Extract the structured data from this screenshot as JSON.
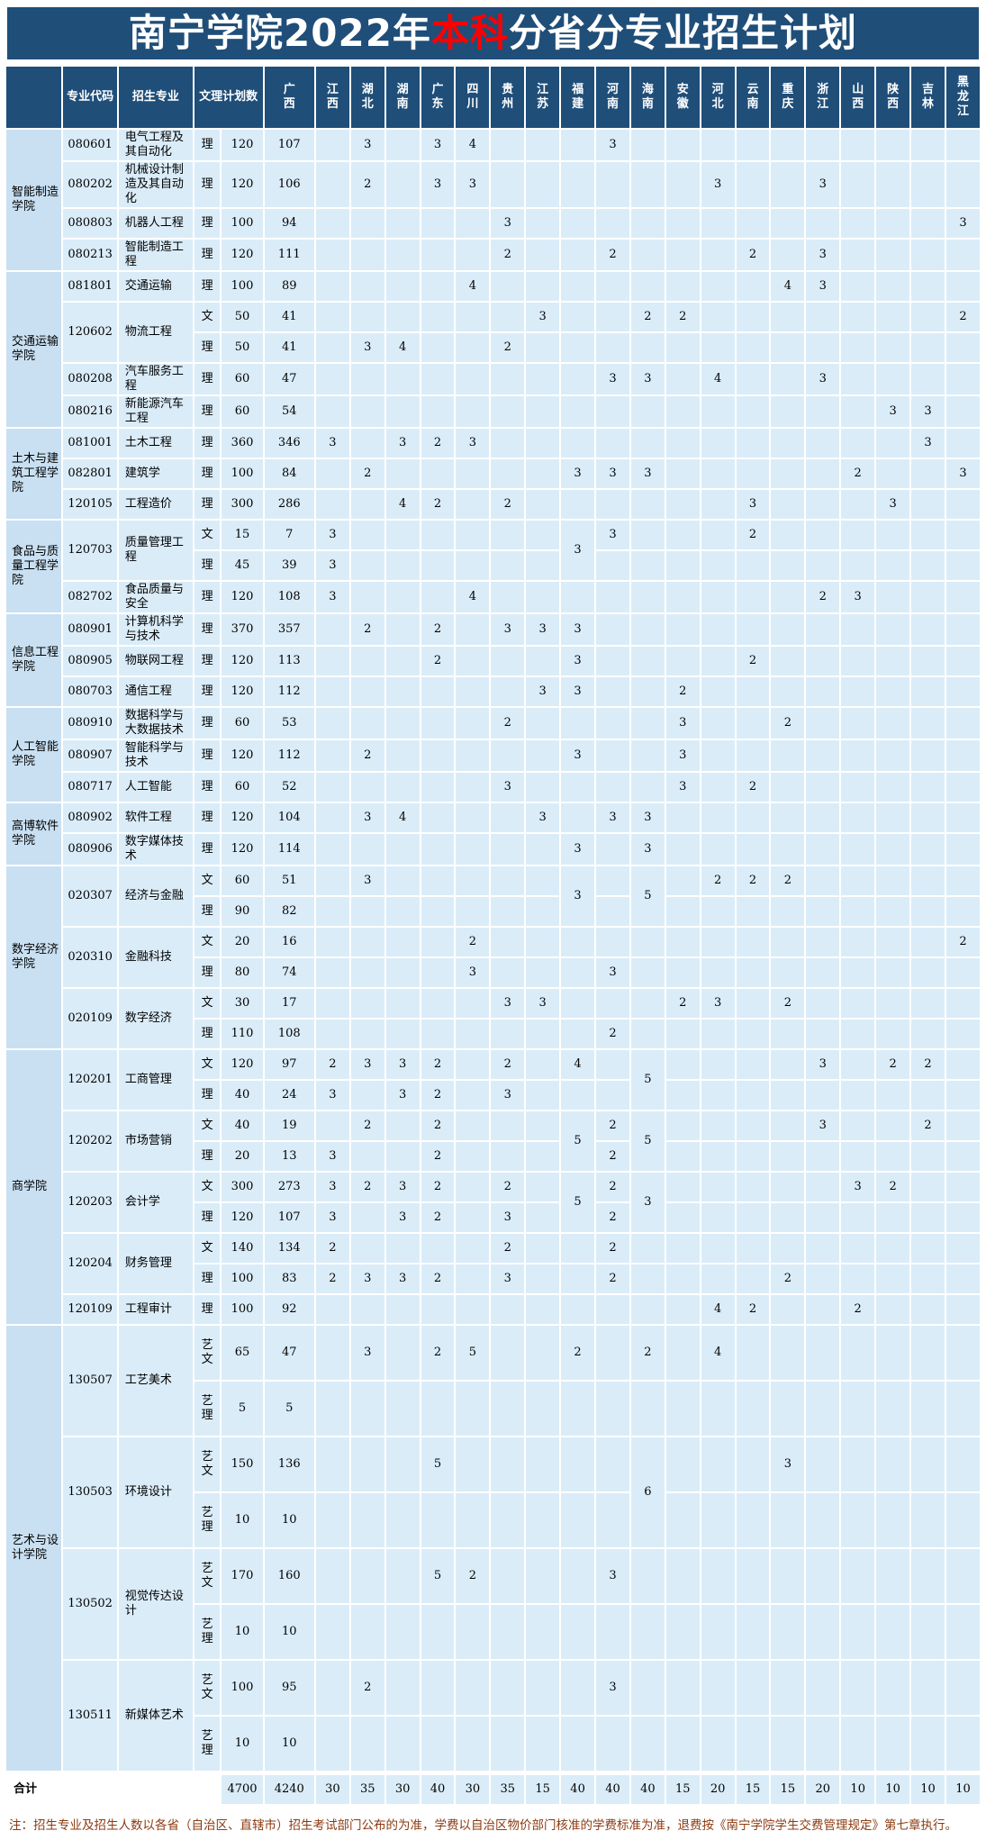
{
  "title": {
    "prefix": "南宁学院2022年",
    "highlight": "本科",
    "suffix": "分省分专业招生计划"
  },
  "colors": {
    "banner_navy": "#1f4e79",
    "highlight_red": "#ff0000",
    "cell_blue": "#daecf8",
    "college_cell_blue": "#c9e0f2",
    "gridline": "#ffffff",
    "note_text": "#8b3a10"
  },
  "table": {
    "corner_label": "",
    "headers": {
      "code": "专业代码",
      "major": "招生专业",
      "track_plan": "文理计划数"
    },
    "provinces": [
      "广西",
      "江西",
      "湖北",
      "湖南",
      "广东",
      "四川",
      "贵州",
      "江苏",
      "福建",
      "河南",
      "海南",
      "安徽",
      "河北",
      "云南",
      "重庆",
      "浙江",
      "山西",
      "陕西",
      "吉林",
      "黑龙江"
    ],
    "colleges": [
      {
        "name": "智能制造学院",
        "majors": [
          {
            "code": "080601",
            "name": "电气工程及其自动化",
            "rows": [
              {
                "track": "理",
                "plan": 120,
                "values": {
                  "广西": 107,
                  "湖北": 3,
                  "广东": 3,
                  "四川": 4,
                  "河南": 3
                }
              }
            ]
          },
          {
            "code": "080202",
            "name": "机械设计制造及其自动化",
            "rows": [
              {
                "track": "理",
                "plan": 120,
                "values": {
                  "广西": 106,
                  "湖北": 2,
                  "广东": 3,
                  "四川": 3,
                  "河北": 3,
                  "浙江": 3
                }
              }
            ]
          },
          {
            "code": "080803",
            "name": "机器人工程",
            "rows": [
              {
                "track": "理",
                "plan": 100,
                "values": {
                  "广西": 94,
                  "贵州": 3,
                  "黑龙江": 3
                }
              }
            ]
          },
          {
            "code": "080213",
            "name": "智能制造工程",
            "rows": [
              {
                "track": "理",
                "plan": 120,
                "values": {
                  "广西": 111,
                  "贵州": 2,
                  "河南": 2,
                  "云南": 2,
                  "浙江": 3
                }
              }
            ]
          }
        ]
      },
      {
        "name": "交通运输学院",
        "majors": [
          {
            "code": "081801",
            "name": "交通运输",
            "rows": [
              {
                "track": "理",
                "plan": 100,
                "values": {
                  "广西": 89,
                  "四川": 4,
                  "重庆": 4,
                  "浙江": 3
                }
              }
            ]
          },
          {
            "code": "120602",
            "name": "物流工程",
            "rows": [
              {
                "track": "文",
                "plan": 50,
                "values": {
                  "广西": 41,
                  "江苏": 3,
                  "海南": 2,
                  "安徽": 2,
                  "黑龙江": 2
                }
              },
              {
                "track": "理",
                "plan": 50,
                "values": {
                  "广西": 41,
                  "湖北": 3,
                  "湖南": 4,
                  "贵州": 2
                }
              }
            ]
          },
          {
            "code": "080208",
            "name": "汽车服务工程",
            "rows": [
              {
                "track": "理",
                "plan": 60,
                "values": {
                  "广西": 47,
                  "河南": 3,
                  "海南": 3,
                  "河北": 4,
                  "浙江": 3
                }
              }
            ]
          },
          {
            "code": "080216",
            "name": "新能源汽车工程",
            "rows": [
              {
                "track": "理",
                "plan": 60,
                "values": {
                  "广西": 54,
                  "陕西": 3,
                  "吉林": 3
                }
              }
            ]
          }
        ]
      },
      {
        "name": "土木与建筑工程学院",
        "majors": [
          {
            "code": "081001",
            "name": "土木工程",
            "rows": [
              {
                "track": "理",
                "plan": 360,
                "values": {
                  "广西": 346,
                  "江西": 3,
                  "湖南": 3,
                  "广东": 2,
                  "四川": 3,
                  "吉林": 3
                }
              }
            ]
          },
          {
            "code": "082801",
            "name": "建筑学",
            "rows": [
              {
                "track": "理",
                "plan": 100,
                "values": {
                  "广西": 84,
                  "湖北": 2,
                  "福建": 3,
                  "河南": 3,
                  "海南": 3,
                  "山西": 2,
                  "黑龙江": 3
                }
              }
            ]
          },
          {
            "code": "120105",
            "name": "工程造价",
            "rows": [
              {
                "track": "理",
                "plan": 300,
                "values": {
                  "广西": 286,
                  "湖南": 4,
                  "广东": 2,
                  "贵州": 2,
                  "云南": 3,
                  "陕西": 3
                }
              }
            ]
          }
        ]
      },
      {
        "name": "食品与质量工程学院",
        "majors": [
          {
            "code": "120703",
            "name": "质量管理工程",
            "merged": {
              "福建": 3
            },
            "rows": [
              {
                "track": "文",
                "plan": 15,
                "values": {
                  "广西": 7,
                  "江西": 3,
                  "河南": 3,
                  "云南": 2
                }
              },
              {
                "track": "理",
                "plan": 45,
                "values": {
                  "广西": 39,
                  "江西": 3
                }
              }
            ]
          },
          {
            "code": "082702",
            "name": "食品质量与安全",
            "rows": [
              {
                "track": "理",
                "plan": 120,
                "values": {
                  "广西": 108,
                  "江西": 3,
                  "四川": 4,
                  "浙江": 2,
                  "山西": 3
                }
              }
            ]
          }
        ]
      },
      {
        "name": "信息工程学院",
        "majors": [
          {
            "code": "080901",
            "name": "计算机科学与技术",
            "rows": [
              {
                "track": "理",
                "plan": 370,
                "values": {
                  "广西": 357,
                  "湖北": 2,
                  "广东": 2,
                  "贵州": 3,
                  "江苏": 3,
                  "福建": 3
                }
              }
            ]
          },
          {
            "code": "080905",
            "name": "物联网工程",
            "rows": [
              {
                "track": "理",
                "plan": 120,
                "values": {
                  "广西": 113,
                  "广东": 2,
                  "福建": 3,
                  "云南": 2
                }
              }
            ]
          },
          {
            "code": "080703",
            "name": "通信工程",
            "rows": [
              {
                "track": "理",
                "plan": 120,
                "values": {
                  "广西": 112,
                  "江苏": 3,
                  "福建": 3,
                  "安徽": 2
                }
              }
            ]
          }
        ]
      },
      {
        "name": "人工智能学院",
        "majors": [
          {
            "code": "080910",
            "name": "数据科学与大数据技术",
            "rows": [
              {
                "track": "理",
                "plan": 60,
                "values": {
                  "广西": 53,
                  "贵州": 2,
                  "安徽": 3,
                  "重庆": 2
                }
              }
            ]
          },
          {
            "code": "080907",
            "name": "智能科学与技术",
            "rows": [
              {
                "track": "理",
                "plan": 120,
                "values": {
                  "广西": 112,
                  "湖北": 2,
                  "福建": 3,
                  "安徽": 3
                }
              }
            ]
          },
          {
            "code": "080717",
            "name": "人工智能",
            "rows": [
              {
                "track": "理",
                "plan": 60,
                "values": {
                  "广西": 52,
                  "贵州": 3,
                  "安徽": 3,
                  "云南": 2
                }
              }
            ]
          }
        ]
      },
      {
        "name": "高博软件学院",
        "majors": [
          {
            "code": "080902",
            "name": "软件工程",
            "rows": [
              {
                "track": "理",
                "plan": 120,
                "values": {
                  "广西": 104,
                  "湖北": 3,
                  "湖南": 4,
                  "江苏": 3,
                  "河南": 3,
                  "海南": 3
                }
              }
            ]
          },
          {
            "code": "080906",
            "name": "数字媒体技术",
            "rows": [
              {
                "track": "理",
                "plan": 120,
                "values": {
                  "广西": 114,
                  "福建": 3,
                  "海南": 3
                }
              }
            ]
          }
        ]
      },
      {
        "name": "数字经济学院",
        "majors": [
          {
            "code": "020307",
            "name": "经济与金融",
            "merged": {
              "福建": 3,
              "海南": 5
            },
            "rows": [
              {
                "track": "文",
                "plan": 60,
                "values": {
                  "广西": 51,
                  "湖北": 3,
                  "河北": 2,
                  "云南": 2,
                  "重庆": 2
                }
              },
              {
                "track": "理",
                "plan": 90,
                "values": {
                  "广西": 82
                }
              }
            ]
          },
          {
            "code": "020310",
            "name": "金融科技",
            "rows": [
              {
                "track": "文",
                "plan": 20,
                "values": {
                  "广西": 16,
                  "四川": 2,
                  "黑龙江": 2
                }
              },
              {
                "track": "理",
                "plan": 80,
                "values": {
                  "广西": 74,
                  "四川": 3,
                  "河南": 3
                }
              }
            ]
          },
          {
            "code": "020109",
            "name": "数字经济",
            "rows": [
              {
                "track": "文",
                "plan": 30,
                "values": {
                  "广西": 17,
                  "贵州": 3,
                  "江苏": 3,
                  "安徽": 2,
                  "河北": 3,
                  "重庆": 2
                }
              },
              {
                "track": "理",
                "plan": 110,
                "values": {
                  "广西": 108,
                  "河南": 2
                }
              }
            ]
          }
        ]
      },
      {
        "name": "商学院",
        "majors": [
          {
            "code": "120201",
            "name": "工商管理",
            "merged": {
              "海南": 5
            },
            "rows": [
              {
                "track": "文",
                "plan": 120,
                "values": {
                  "广西": 97,
                  "江西": 2,
                  "湖北": 3,
                  "湖南": 3,
                  "广东": 2,
                  "贵州": 2,
                  "福建": 4,
                  "浙江": 3,
                  "陕西": 2,
                  "吉林": 2
                }
              },
              {
                "track": "理",
                "plan": 40,
                "values": {
                  "广西": 24,
                  "江西": 3,
                  "湖南": 3,
                  "广东": 2,
                  "贵州": 3
                }
              }
            ]
          },
          {
            "code": "120202",
            "name": "市场营销",
            "merged": {
              "福建": 5,
              "海南": 5
            },
            "rows": [
              {
                "track": "文",
                "plan": 40,
                "values": {
                  "广西": 19,
                  "湖北": 2,
                  "广东": 2,
                  "河南": 2,
                  "浙江": 3,
                  "吉林": 2
                }
              },
              {
                "track": "理",
                "plan": 20,
                "values": {
                  "广西": 13,
                  "江西": 3,
                  "广东": 2,
                  "河南": 2
                }
              }
            ]
          },
          {
            "code": "120203",
            "name": "会计学",
            "merged": {
              "福建": 5,
              "海南": 3
            },
            "rows": [
              {
                "track": "文",
                "plan": 300,
                "values": {
                  "广西": 273,
                  "江西": 3,
                  "湖北": 2,
                  "湖南": 3,
                  "广东": 2,
                  "贵州": 2,
                  "河南": 2,
                  "山西": 3,
                  "陕西": 2
                }
              },
              {
                "track": "理",
                "plan": 120,
                "values": {
                  "广西": 107,
                  "江西": 3,
                  "湖南": 3,
                  "广东": 2,
                  "贵州": 3,
                  "河南": 2
                }
              }
            ]
          },
          {
            "code": "120204",
            "name": "财务管理",
            "rows": [
              {
                "track": "文",
                "plan": 140,
                "values": {
                  "广西": 134,
                  "江西": 2,
                  "贵州": 2,
                  "河南": 2
                }
              },
              {
                "track": "理",
                "plan": 100,
                "values": {
                  "广西": 83,
                  "江西": 2,
                  "湖北": 3,
                  "湖南": 3,
                  "广东": 2,
                  "贵州": 3,
                  "河南": 2,
                  "重庆": 2
                }
              }
            ]
          },
          {
            "code": "120109",
            "name": "工程审计",
            "rows": [
              {
                "track": "理",
                "plan": 100,
                "values": {
                  "广西": 92,
                  "河北": 4,
                  "云南": 2,
                  "山西": 2
                }
              }
            ]
          }
        ]
      },
      {
        "name": "艺术与设计学院",
        "majors": [
          {
            "code": "130507",
            "name": "工艺美术",
            "art": true,
            "rows": [
              {
                "track": "艺文",
                "plan": 65,
                "values": {
                  "广西": 47,
                  "湖北": 3,
                  "广东": 2,
                  "四川": 5,
                  "福建": 2,
                  "海南": 2,
                  "河北": 4
                }
              },
              {
                "track": "艺理",
                "plan": 5,
                "values": {
                  "广西": 5
                }
              }
            ]
          },
          {
            "code": "130503",
            "name": "环境设计",
            "art": true,
            "merged": {
              "海南": 6
            },
            "rows": [
              {
                "track": "艺文",
                "plan": 150,
                "values": {
                  "广西": 136,
                  "广东": 5,
                  "重庆": 3
                }
              },
              {
                "track": "艺理",
                "plan": 10,
                "values": {
                  "广西": 10
                }
              }
            ]
          },
          {
            "code": "130502",
            "name": "视觉传达设计",
            "art": true,
            "rows": [
              {
                "track": "艺文",
                "plan": 170,
                "values": {
                  "广西": 160,
                  "广东": 5,
                  "四川": 2,
                  "河南": 3
                }
              },
              {
                "track": "艺理",
                "plan": 10,
                "values": {
                  "广西": 10
                }
              }
            ]
          },
          {
            "code": "130511",
            "name": "新媒体艺术",
            "art": true,
            "rows": [
              {
                "track": "艺文",
                "plan": 100,
                "values": {
                  "广西": 95,
                  "湖北": 2,
                  "河南": 3
                }
              },
              {
                "track": "艺理",
                "plan": 10,
                "values": {
                  "广西": 10
                }
              }
            ]
          }
        ]
      }
    ],
    "total": {
      "label": "合计",
      "plan": 4700,
      "values": {
        "广西": 4240,
        "江西": 30,
        "湖北": 35,
        "湖南": 30,
        "广东": 40,
        "四川": 30,
        "贵州": 35,
        "江苏": 15,
        "福建": 40,
        "河南": 40,
        "海南": 40,
        "安徽": 15,
        "河北": 20,
        "云南": 15,
        "重庆": 15,
        "浙江": 20,
        "山西": 10,
        "陕西": 10,
        "吉林": 10,
        "黑龙江": 10
      }
    }
  },
  "note": "注：招生专业及招生人数以各省（自治区、直辖市）招生考试部门公布的为准，学费以自治区物价部门核准的学费标准为准，退费按《南宁学院学生交费管理规定》第七章执行。"
}
